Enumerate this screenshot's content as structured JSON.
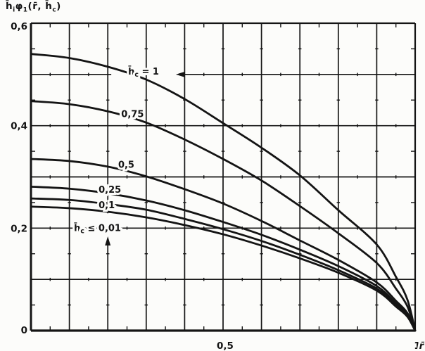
{
  "figure": {
    "kind": "scanned monochrome line chart",
    "ink_color": "#141414",
    "paper_color": "#fcfcfa",
    "title_formula": "h̄_iφ_1(r̄, h̄_c)"
  },
  "chart_data": {
    "type": "line",
    "title": "h̄_iφ_1(r̄, h̄_c)",
    "xlabel": "r̄",
    "ylabel": "h̄_iφ_1(r̄, h̄_c)",
    "xlim": [
      0,
      1
    ],
    "ylim": [
      0,
      0.6
    ],
    "grid": {
      "on": true,
      "x_step": 0.1,
      "y_step": 0.1,
      "minor_tick_step": 0.05
    },
    "legend_position": "labels drawn on curves",
    "x_ticks": [
      {
        "value": 0.5,
        "label": "0,5"
      },
      {
        "value": 1,
        "label": "1"
      }
    ],
    "x_axis_var_label": "r̄",
    "y_ticks": [
      {
        "value": 0,
        "label": "0"
      },
      {
        "value": 0.2,
        "label": "0,2"
      },
      {
        "value": 0.4,
        "label": "0,4"
      },
      {
        "value": 0.6,
        "label": "0,6"
      }
    ],
    "x": [
      0,
      0.1,
      0.2,
      0.3,
      0.4,
      0.5,
      0.6,
      0.7,
      0.8,
      0.9,
      0.95,
      0.98,
      1
    ],
    "series": [
      {
        "name": "h̄_c = 1",
        "hc": 1,
        "values": [
          0.54,
          0.532,
          0.515,
          0.49,
          0.452,
          0.405,
          0.357,
          0.303,
          0.235,
          0.168,
          0.105,
          0.06,
          0
        ]
      },
      {
        "name": "0,75",
        "hc": 0.75,
        "values": [
          0.448,
          0.442,
          0.428,
          0.406,
          0.373,
          0.335,
          0.293,
          0.243,
          0.19,
          0.132,
          0.082,
          0.047,
          0
        ]
      },
      {
        "name": "0,5",
        "hc": 0.5,
        "values": [
          0.335,
          0.331,
          0.32,
          0.301,
          0.276,
          0.248,
          0.214,
          0.176,
          0.138,
          0.094,
          0.058,
          0.034,
          0
        ]
      },
      {
        "name": "0,25",
        "hc": 0.25,
        "values": [
          0.281,
          0.277,
          0.268,
          0.254,
          0.235,
          0.212,
          0.187,
          0.158,
          0.126,
          0.087,
          0.053,
          0.031,
          0
        ]
      },
      {
        "name": "0,1",
        "hc": 0.1,
        "values": [
          0.258,
          0.255,
          0.247,
          0.236,
          0.218,
          0.198,
          0.175,
          0.148,
          0.118,
          0.082,
          0.05,
          0.029,
          0
        ]
      },
      {
        "name": "h̄_c ≤ 0,01",
        "hc": 0.01,
        "values": [
          0.242,
          0.239,
          0.232,
          0.221,
          0.206,
          0.188,
          0.166,
          0.141,
          0.113,
          0.078,
          0.047,
          0.027,
          0
        ]
      }
    ],
    "annotations": [
      {
        "text": "h̄_c = 1",
        "x": 0.253,
        "y": 0.5,
        "name": "curve-label-hc-1"
      },
      {
        "text": "0,75",
        "x": 0.235,
        "y": 0.417,
        "name": "curve-label-hc-075"
      },
      {
        "text": "0,5",
        "x": 0.227,
        "y": 0.318,
        "name": "curve-label-hc-05"
      },
      {
        "text": "0,25",
        "x": 0.176,
        "y": 0.269,
        "name": "curve-label-hc-025"
      },
      {
        "text": "0,1",
        "x": 0.176,
        "y": 0.239,
        "name": "curve-label-hc-01"
      },
      {
        "text": "h̄_c ≤ 0,01",
        "x": 0.112,
        "y": 0.194,
        "name": "curve-label-hc-001"
      }
    ],
    "leader_arrows": [
      {
        "kind": "horizontal-gridline-arrow",
        "at_value": 0.5,
        "tip_x": 0.377,
        "direction": "left",
        "gridline_left_segment": [
          0,
          0.209
        ],
        "note": "0,5 gridline is broken around the h̄c = 1 label and ends in a left-pointing arrowhead"
      },
      {
        "kind": "vertical-gridline-arrow",
        "at_x": 0.2,
        "tip_value": 0.184,
        "direction": "up",
        "gridline_top_segment_values": [
          0.229,
          0.6
        ],
        "note": "x = 0,2 gridline is broken around the h̄c ≤ 0,01 label and ends in an up-pointing arrowhead"
      }
    ]
  }
}
